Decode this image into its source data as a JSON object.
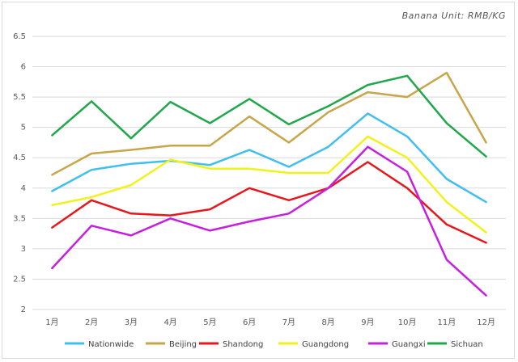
{
  "chart_data": {
    "type": "line",
    "title": "Banana Unit: RMB/KG",
    "categories": [
      "1月",
      "2月",
      "3月",
      "4月",
      "5月",
      "6月",
      "7月",
      "8月",
      "9月",
      "10月",
      "11月",
      "12月"
    ],
    "ylim": [
      2,
      6.5
    ],
    "yticks": [
      "2",
      "2.5",
      "3",
      "3.5",
      "4",
      "4.5",
      "5",
      "5.5",
      "6",
      "6.5"
    ],
    "grid": true,
    "legend_position": "bottom",
    "series": [
      {
        "name": "Nationwide",
        "color": "#3fbfef",
        "values": [
          3.95,
          4.3,
          4.4,
          4.45,
          4.38,
          4.63,
          4.35,
          4.68,
          5.23,
          4.85,
          4.15,
          3.77
        ]
      },
      {
        "name": "Beijing",
        "color": "#c9a54a",
        "values": [
          4.22,
          4.57,
          4.63,
          4.7,
          4.7,
          5.18,
          4.75,
          5.25,
          5.58,
          5.5,
          5.9,
          4.75
        ]
      },
      {
        "name": "Shandong",
        "color": "#e8171c",
        "values": [
          3.35,
          3.8,
          3.58,
          3.55,
          3.65,
          4.0,
          3.8,
          4.0,
          4.43,
          4.0,
          3.4,
          3.1
        ]
      },
      {
        "name": "Guangdong",
        "color": "#f2f21a",
        "values": [
          3.72,
          3.85,
          4.05,
          4.47,
          4.32,
          4.32,
          4.25,
          4.25,
          4.85,
          4.5,
          3.77,
          3.27
        ]
      },
      {
        "name": "Guangxi",
        "color": "#c61fe0",
        "values": [
          2.68,
          3.38,
          3.22,
          3.5,
          3.3,
          3.45,
          3.58,
          4.0,
          4.68,
          4.27,
          2.82,
          2.23
        ]
      },
      {
        "name": "Sichuan",
        "color": "#1fa84a",
        "values": [
          4.87,
          5.43,
          4.82,
          5.42,
          5.07,
          5.47,
          5.05,
          5.35,
          5.7,
          5.85,
          5.07,
          4.52
        ]
      }
    ]
  }
}
